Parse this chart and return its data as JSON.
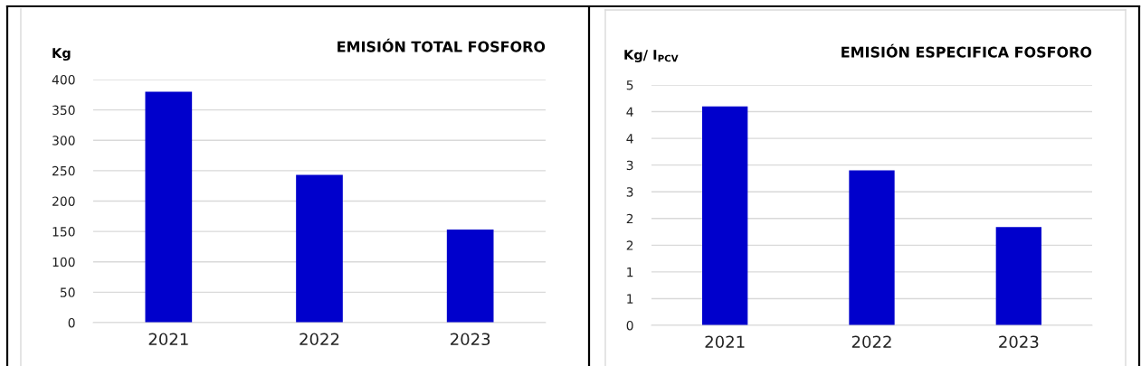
{
  "chart_data": [
    {
      "type": "bar",
      "title": "EMISIÓN TOTAL FOSFORO",
      "ylabel": "Kg",
      "categories": [
        "2021",
        "2022",
        "2023"
      ],
      "values": [
        380,
        243,
        153
      ],
      "color": "#0000cc",
      "ylim": [
        0,
        400
      ],
      "yticks": [
        0,
        50,
        100,
        150,
        200,
        250,
        300,
        350,
        400
      ],
      "grid": "y"
    },
    {
      "type": "bar",
      "title": "EMISIÓN ESPECIFICA FOSFORO",
      "ylabel": "Kg/ I$_{PCV}$",
      "categories": [
        "2021",
        "2022",
        "2023"
      ],
      "values": [
        4.1,
        2.9,
        1.84
      ],
      "color": "#0000cc",
      "ylim": [
        0,
        4.5
      ],
      "yticks": [
        0,
        {
          "value": 0.5,
          "label": "1"
        },
        1,
        {
          "value": 1.5,
          "label": "2"
        },
        2,
        {
          "value": 2.5,
          "label": "3"
        },
        3,
        {
          "value": 3.5,
          "label": "4"
        },
        4,
        {
          "value": 4.5,
          "label": "5"
        }
      ],
      "grid": "y"
    }
  ]
}
